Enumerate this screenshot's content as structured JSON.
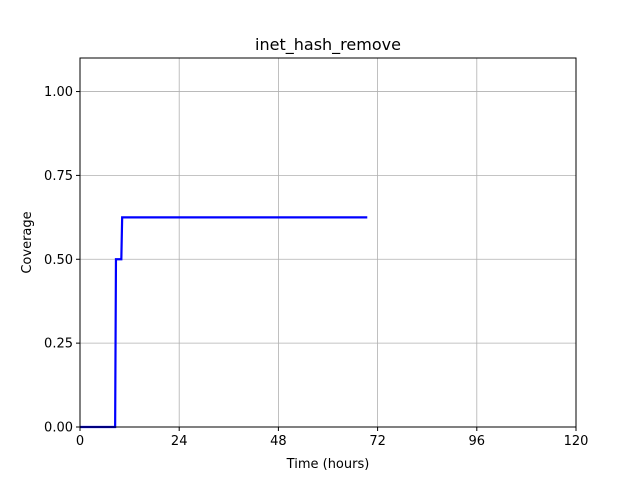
{
  "chart_data": {
    "type": "line",
    "title": "inet_hash_remove",
    "xlabel": "Time (hours)",
    "ylabel": "Coverage",
    "xlim": [
      0,
      120
    ],
    "ylim": [
      0,
      1.1
    ],
    "xticks": [
      0,
      24,
      48,
      72,
      96,
      120
    ],
    "xtick_labels": [
      "0",
      "24",
      "48",
      "72",
      "96",
      "120"
    ],
    "yticks": [
      0.0,
      0.25,
      0.5,
      0.75,
      1.0
    ],
    "ytick_labels": [
      "0.00",
      "0.25",
      "0.50",
      "0.75",
      "1.00"
    ],
    "grid": true,
    "series": [
      {
        "color": "#0000ff",
        "x": [
          0,
          8.5,
          8.7,
          10.0,
          10.2,
          69.5
        ],
        "y": [
          0.0,
          0.0,
          0.5,
          0.5,
          0.625,
          0.625
        ]
      }
    ]
  }
}
